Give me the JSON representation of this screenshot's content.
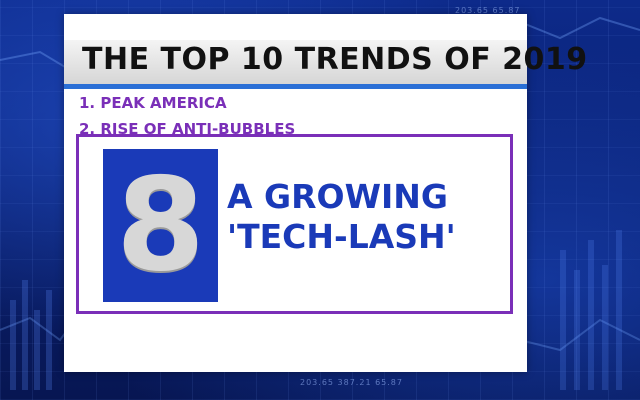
{
  "title": "THE TOP 10 TRENDS OF 2019",
  "list": [
    "1. PEAK AMERICA",
    "2. RISE OF ANTI-BUBBLES"
  ],
  "feature": {
    "number": "8",
    "line1": "A GROWING",
    "line2": "'TECH-LASH'"
  },
  "background_tickers": {
    "top": "203.65     65.87",
    "bottom": "203.65     387.21     65.87"
  },
  "colors": {
    "background": "#0b1f6e",
    "accent_blue": "#1a3ab8",
    "accent_purple": "#7a2fb8",
    "title_underline": "#2a6fd6"
  }
}
